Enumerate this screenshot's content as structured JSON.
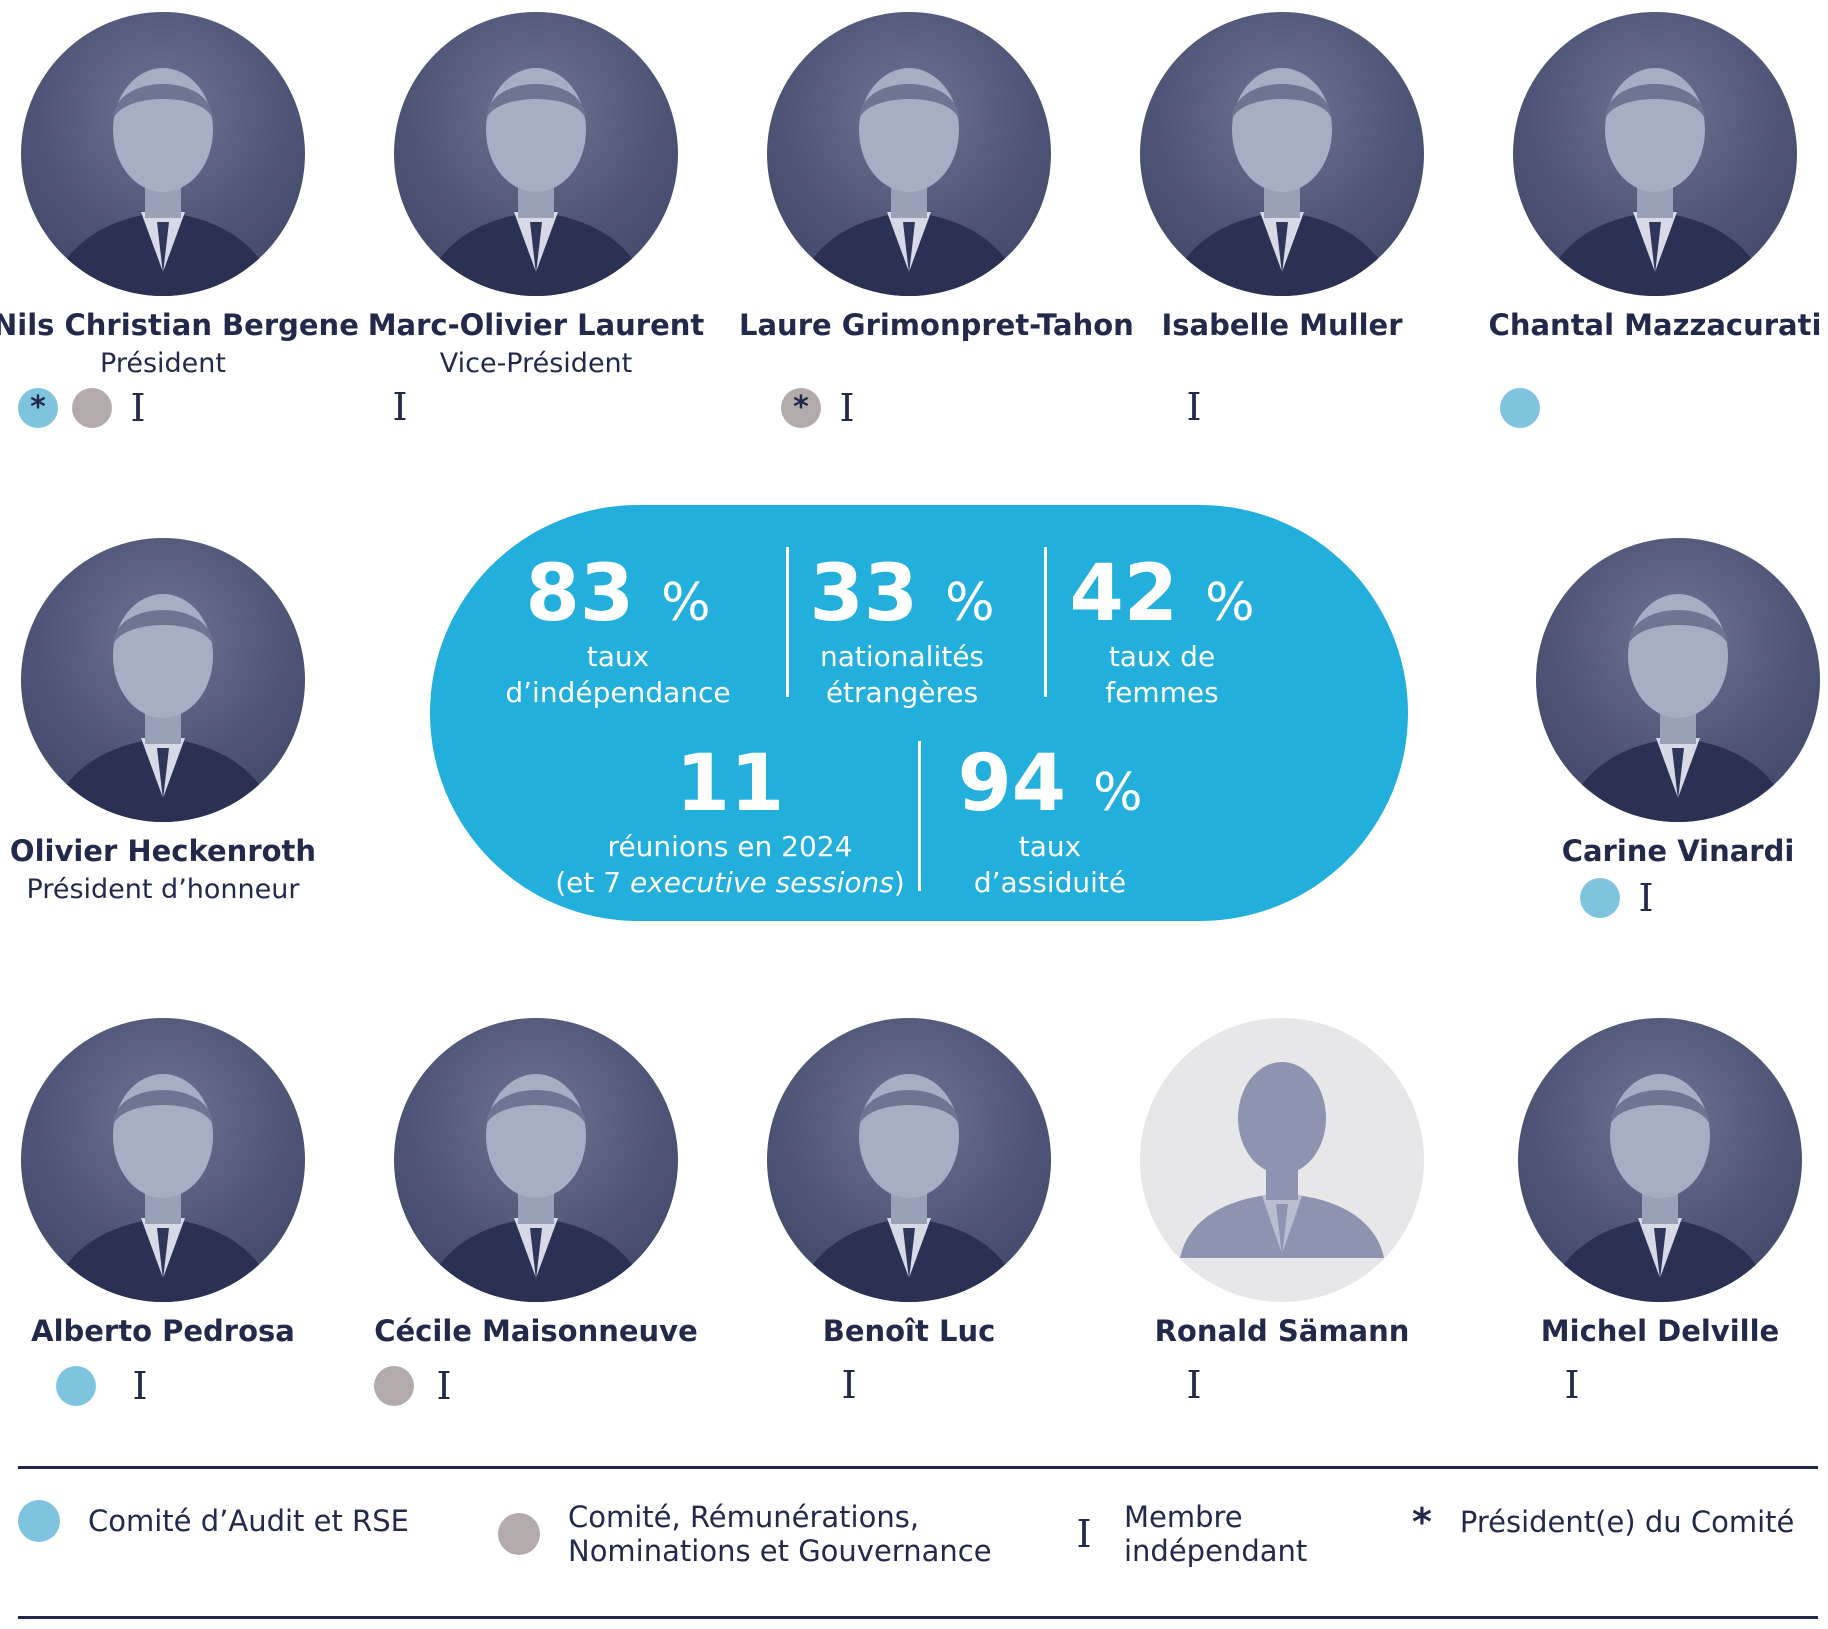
{
  "members": [
    {
      "name": "Nils Christian Bergene",
      "role": "Président"
    },
    {
      "name": "Marc-Olivier Laurent",
      "role": "Vice-Président"
    },
    {
      "name": "Laure Grimonpret-Tahon",
      "role": ""
    },
    {
      "name": "Isabelle Muller",
      "role": ""
    },
    {
      "name": "Chantal Mazzacurati",
      "role": ""
    },
    {
      "name": "Olivier Heckenroth",
      "role": "Président d’honneur"
    },
    {
      "name": "Carine Vinardi",
      "role": ""
    },
    {
      "name": "Alberto Pedrosa",
      "role": ""
    },
    {
      "name": "Cécile Maisonneuve",
      "role": ""
    },
    {
      "name": "Benoît Luc",
      "role": ""
    },
    {
      "name": "Ronald Sämann",
      "role": ""
    },
    {
      "name": "Michel Delville",
      "role": ""
    }
  ],
  "stats": {
    "independence": {
      "value": "83",
      "unit": "%",
      "line1": "taux",
      "line2": "d’indépendance"
    },
    "foreign": {
      "value": "33",
      "unit": "%",
      "line1": "nationalités",
      "line2": "étrangères"
    },
    "women": {
      "value": "42",
      "unit": "%",
      "line1": "taux de",
      "line2": "femmes"
    },
    "meetings": {
      "value": "11",
      "unit": "",
      "line1": "réunions en 2024",
      "line2_prefix": "(et 7 ",
      "line2_italic": "executive sessions",
      "line2_suffix": ")"
    },
    "attendance": {
      "value": "94",
      "unit": "%",
      "line1": "taux",
      "line2": "d’assiduité"
    }
  },
  "symbols": {
    "independent": "I",
    "chair": "*"
  },
  "legend": {
    "audit": "Comité d’Audit et RSE",
    "remun_line1": "Comité, Rémunérations,",
    "remun_line2": "Nominations et Gouvernance",
    "indep_line1": "Membre",
    "indep_line2": "indépendant",
    "chair": "Président(e) du Comité"
  },
  "colors": {
    "navy": "#23294a",
    "cyan": "#23afdb",
    "audit_blue": "#7fc4de",
    "committee_grey": "#b3abab"
  },
  "icons": {
    "audit": "light-blue-circle",
    "remuneration": "grey-circle",
    "independent": "serif-i-bar",
    "chair": "asterisk"
  }
}
